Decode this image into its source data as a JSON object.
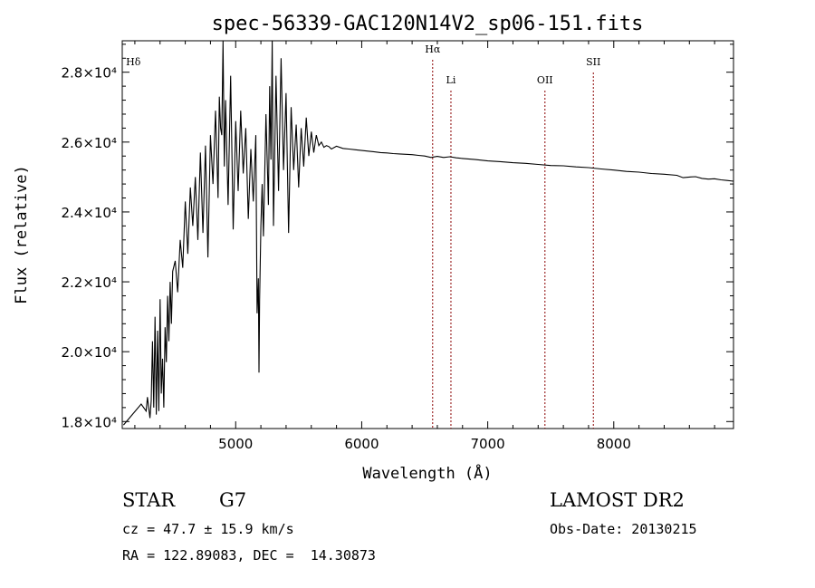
{
  "chart_data": {
    "type": "line",
    "title": "spec-56339-GAC120N14V2_sp06-151.fits",
    "xlabel": "Wavelength (Å)",
    "ylabel": "Flux (relative)",
    "xlim": [
      4100,
      8950
    ],
    "ylim": [
      17800,
      28900
    ],
    "xticks": [
      5000,
      6000,
      7000,
      8000
    ],
    "xtick_labels": [
      "5000",
      "6000",
      "7000",
      "8000"
    ],
    "yticks": [
      18000,
      20000,
      22000,
      24000,
      26000,
      28000
    ],
    "ytick_labels": [
      "1.8×10⁴",
      "2.0×10⁴",
      "2.2×10⁴",
      "2.4×10⁴",
      "2.6×10⁴",
      "2.8×10⁴"
    ],
    "grid": false,
    "line_color": "#000000",
    "marker_color": "#8b0000",
    "series": [
      {
        "x": [
          4110,
          4180,
          4250,
          4290,
          4300,
          4320,
          4330,
          4340,
          4350,
          4360,
          4370,
          4380,
          4390,
          4400,
          4410,
          4420,
          4430,
          4440,
          4450,
          4460,
          4470,
          4480,
          4490,
          4500,
          4520,
          4540,
          4560,
          4580,
          4600,
          4620,
          4640,
          4660,
          4680,
          4700,
          4720,
          4740,
          4760,
          4780,
          4800,
          4820,
          4840,
          4860,
          4870,
          4880,
          4890,
          4900,
          4910,
          4920,
          4940,
          4960,
          4980,
          5000,
          5020,
          5040,
          5060,
          5080,
          5100,
          5120,
          5140,
          5160,
          5170,
          5180,
          5185,
          5190,
          5200,
          5210,
          5220,
          5240,
          5260,
          5270,
          5280,
          5290,
          5300,
          5320,
          5340,
          5360,
          5380,
          5400,
          5420,
          5440,
          5460,
          5480,
          5500,
          5520,
          5540,
          5560,
          5580,
          5600,
          5620,
          5640,
          5660,
          5680,
          5700,
          5720,
          5740,
          5760,
          5800,
          5850,
          5900,
          5950,
          6000,
          6050,
          6100,
          6150,
          6200,
          6250,
          6300,
          6350,
          6400,
          6450,
          6500,
          6550,
          6600,
          6650,
          6700,
          6750,
          6800,
          6900,
          7000,
          7100,
          7200,
          7300,
          7400,
          7500,
          7600,
          7700,
          7800,
          7900,
          8000,
          8100,
          8200,
          8300,
          8400,
          8500,
          8550,
          8600,
          8650,
          8700,
          8750,
          8800,
          8850,
          8900,
          8950
        ],
        "y": [
          17900,
          18200,
          18500,
          18300,
          18700,
          18100,
          18600,
          20300,
          18400,
          21000,
          18200,
          20600,
          18300,
          21500,
          18800,
          19800,
          18400,
          20700,
          19700,
          21600,
          20300,
          22000,
          20800,
          22300,
          22600,
          21700,
          23200,
          22400,
          24300,
          22800,
          24700,
          23600,
          25000,
          23200,
          25700,
          23400,
          25900,
          22700,
          26200,
          24800,
          26900,
          24400,
          27300,
          26400,
          26200,
          28900,
          25300,
          27200,
          24200,
          27900,
          23500,
          26600,
          24600,
          26900,
          25100,
          26400,
          23800,
          25800,
          24300,
          26200,
          21100,
          22100,
          19400,
          21500,
          23600,
          24800,
          23300,
          26800,
          24200,
          27600,
          25500,
          28900,
          23600,
          27900,
          24600,
          28400,
          25200,
          27400,
          23400,
          27000,
          25200,
          26500,
          24700,
          26400,
          25300,
          26700,
          25600,
          26300,
          25700,
          26200,
          25900,
          26000,
          25850,
          25900,
          25870,
          25800,
          25880,
          25820,
          25800,
          25780,
          25760,
          25740,
          25720,
          25700,
          25690,
          25670,
          25660,
          25650,
          25640,
          25620,
          25600,
          25560,
          25590,
          25560,
          25580,
          25550,
          25530,
          25500,
          25460,
          25440,
          25410,
          25390,
          25360,
          25330,
          25320,
          25290,
          25270,
          25230,
          25200,
          25160,
          25140,
          25100,
          25080,
          25050,
          24980,
          25000,
          25010,
          24960,
          24940,
          24950,
          24920,
          24900,
          24880
        ]
      }
    ],
    "line_markers": [
      {
        "label": "Hδ",
        "wavelength": 4102
      },
      {
        "label": "Hα",
        "wavelength": 6563
      },
      {
        "label": "Li",
        "wavelength": 6708
      },
      {
        "label": "OII",
        "wavelength": 7454
      },
      {
        "label": "SII",
        "wavelength": 7838
      }
    ]
  },
  "info": {
    "object_class": "STAR",
    "subclass": "G7",
    "survey": "LAMOST DR2",
    "cz_line": "cz = 47.7 ± 15.9 km/s",
    "obs_date_line": "Obs-Date: 20130215",
    "radec_line": "RA = 122.89083, DEC =  14.30873"
  }
}
